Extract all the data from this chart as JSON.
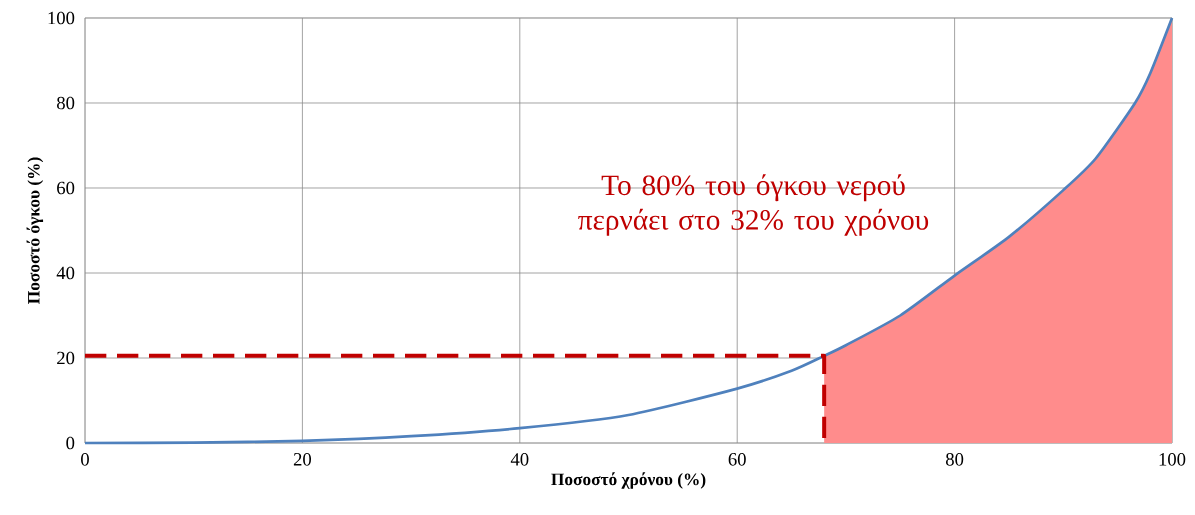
{
  "chart_data": {
    "type": "line",
    "xlabel": "Ποσοστό χρόνου (%)",
    "ylabel": "Ποσοστό όγκου (%)",
    "xlim": [
      0,
      100
    ],
    "ylim": [
      0,
      100
    ],
    "xticks": [
      0,
      20,
      40,
      60,
      80,
      100
    ],
    "yticks": [
      0,
      20,
      40,
      60,
      80,
      100
    ],
    "grid": true,
    "marker": "none",
    "series": [
      {
        "type": "area",
        "color": "#ff8c8c",
        "x": [
          68,
          70,
          75,
          80,
          85,
          90,
          93,
          96.6,
          98,
          100
        ],
        "values": [
          20.5,
          23,
          30,
          39.4,
          48.5,
          59.5,
          67,
          80,
          87,
          100
        ]
      },
      {
        "color": "#4f81bd",
        "line_style": "solid",
        "x": [
          0,
          10,
          20,
          30,
          40,
          50,
          60,
          65,
          68,
          70,
          75,
          80,
          85,
          90,
          93,
          96.6,
          98,
          100
        ],
        "values": [
          0,
          0.1,
          0.5,
          1.6,
          3.5,
          6.6,
          12.8,
          17,
          20.5,
          23,
          30,
          39.4,
          48.5,
          59.5,
          67,
          80,
          87,
          100
        ]
      },
      {
        "color": "#c00000",
        "line_style": "dashed",
        "x": [
          0,
          68,
          68
        ],
        "values": [
          20.5,
          20.5,
          0
        ]
      }
    ],
    "annotations": [
      "Το 80% του όγκου νερού περνάει στο 32% του χρόνου"
    ]
  }
}
